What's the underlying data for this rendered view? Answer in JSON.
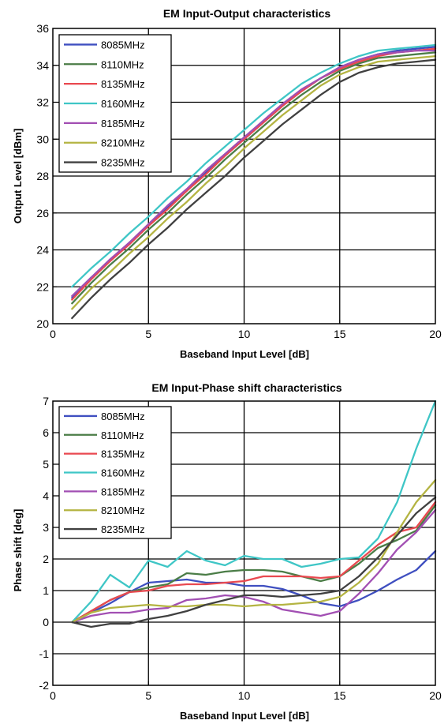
{
  "chart_data": [
    {
      "type": "line",
      "title": "EM Input-Output characteristics",
      "xlabel": "Baseband Input Level [dB]",
      "ylabel": "Output Level [dBm]",
      "xlim": [
        0,
        20
      ],
      "ylim": [
        20,
        36
      ],
      "xticks": [
        0,
        5,
        10,
        15,
        20
      ],
      "yticks": [
        20,
        22,
        24,
        26,
        28,
        30,
        32,
        34,
        36
      ],
      "grid": true,
      "legend_position": "top-left",
      "x": [
        1,
        2,
        3,
        4,
        5,
        6,
        7,
        8,
        9,
        10,
        11,
        12,
        13,
        14,
        15,
        16,
        17,
        18,
        19,
        20
      ],
      "series": [
        {
          "name": "8085MHz",
          "color": "#3f4fc0",
          "values": [
            21.4,
            22.5,
            23.4,
            24.4,
            25.3,
            26.3,
            27.2,
            28.2,
            29.1,
            30.0,
            30.9,
            31.8,
            32.6,
            33.3,
            33.9,
            34.3,
            34.6,
            34.8,
            34.9,
            35.0
          ]
        },
        {
          "name": "8110MHz",
          "color": "#4b7d47",
          "values": [
            21.1,
            22.2,
            23.2,
            24.1,
            25.1,
            26.0,
            27.0,
            27.9,
            28.9,
            29.8,
            30.7,
            31.6,
            32.4,
            33.1,
            33.7,
            34.1,
            34.4,
            34.5,
            34.6,
            34.7
          ]
        },
        {
          "name": "8135MHz",
          "color": "#e94950",
          "values": [
            21.3,
            22.4,
            23.4,
            24.3,
            25.3,
            26.2,
            27.2,
            28.1,
            29.1,
            30.0,
            30.9,
            31.8,
            32.6,
            33.3,
            33.8,
            34.2,
            34.5,
            34.7,
            34.8,
            34.9
          ]
        },
        {
          "name": "8160MHz",
          "color": "#3fc6c6",
          "values": [
            22.0,
            23.0,
            23.9,
            24.9,
            25.8,
            26.8,
            27.7,
            28.7,
            29.6,
            30.5,
            31.4,
            32.2,
            33.0,
            33.6,
            34.1,
            34.5,
            34.8,
            34.9,
            35.0,
            35.1
          ]
        },
        {
          "name": "8185MHz",
          "color": "#a24fb3",
          "values": [
            21.5,
            22.5,
            23.5,
            24.4,
            25.4,
            26.4,
            27.3,
            28.3,
            29.2,
            30.1,
            31.0,
            31.9,
            32.7,
            33.3,
            33.9,
            34.3,
            34.6,
            34.7,
            34.8,
            34.8
          ]
        },
        {
          "name": "8210MHz",
          "color": "#b4b442",
          "values": [
            20.8,
            21.9,
            22.8,
            23.8,
            24.7,
            25.7,
            26.6,
            27.6,
            28.5,
            29.5,
            30.4,
            31.3,
            32.1,
            32.9,
            33.5,
            33.9,
            34.2,
            34.3,
            34.4,
            34.5
          ]
        },
        {
          "name": "8235MHz",
          "color": "#404040",
          "values": [
            20.3,
            21.4,
            22.4,
            23.3,
            24.3,
            25.2,
            26.2,
            27.1,
            28.0,
            29.0,
            29.9,
            30.8,
            31.6,
            32.4,
            33.1,
            33.6,
            33.9,
            34.1,
            34.2,
            34.3
          ]
        }
      ]
    },
    {
      "type": "line",
      "title": "EM Input-Phase shift characteristics",
      "xlabel": "Baseband Input Level [dB]",
      "ylabel": "Phase shift [deg]",
      "xlim": [
        0,
        20
      ],
      "ylim": [
        -2,
        7
      ],
      "xticks": [
        0,
        5,
        10,
        15,
        20
      ],
      "yticks": [
        -2,
        -1,
        0,
        1,
        2,
        3,
        4,
        5,
        6,
        7
      ],
      "grid": true,
      "legend_position": "top-left",
      "x": [
        1,
        2,
        3,
        4,
        5,
        6,
        7,
        8,
        9,
        10,
        11,
        12,
        13,
        14,
        15,
        16,
        17,
        18,
        19,
        20
      ],
      "series": [
        {
          "name": "8085MHz",
          "color": "#3f4fc0",
          "values": [
            0.0,
            0.3,
            0.6,
            0.95,
            1.25,
            1.3,
            1.35,
            1.25,
            1.25,
            1.15,
            1.15,
            1.05,
            0.85,
            0.6,
            0.5,
            0.7,
            1.0,
            1.35,
            1.65,
            2.25
          ]
        },
        {
          "name": "8110MHz",
          "color": "#4b7d47",
          "values": [
            0.0,
            0.35,
            0.7,
            0.95,
            1.1,
            1.2,
            1.55,
            1.5,
            1.6,
            1.65,
            1.65,
            1.6,
            1.45,
            1.3,
            1.45,
            1.85,
            2.35,
            2.6,
            2.9,
            3.7
          ]
        },
        {
          "name": "8135MHz",
          "color": "#e94950",
          "values": [
            0.0,
            0.35,
            0.7,
            0.95,
            1.0,
            1.15,
            1.2,
            1.2,
            1.25,
            1.3,
            1.45,
            1.45,
            1.45,
            1.4,
            1.45,
            1.95,
            2.45,
            2.85,
            3.0,
            3.8
          ]
        },
        {
          "name": "8160MHz",
          "color": "#3fc6c6",
          "values": [
            0.0,
            0.65,
            1.5,
            1.1,
            1.95,
            1.75,
            2.25,
            1.95,
            1.8,
            2.1,
            2.0,
            2.0,
            1.75,
            1.85,
            2.0,
            2.05,
            2.65,
            3.8,
            5.5,
            7.0
          ]
        },
        {
          "name": "8185MHz",
          "color": "#a24fb3",
          "values": [
            0.0,
            0.2,
            0.3,
            0.3,
            0.4,
            0.45,
            0.7,
            0.75,
            0.85,
            0.8,
            0.65,
            0.4,
            0.3,
            0.2,
            0.35,
            0.9,
            1.55,
            2.3,
            2.85,
            3.55
          ]
        },
        {
          "name": "8210MHz",
          "color": "#b4b442",
          "values": [
            0.0,
            0.3,
            0.45,
            0.5,
            0.55,
            0.5,
            0.5,
            0.55,
            0.55,
            0.5,
            0.55,
            0.55,
            0.6,
            0.65,
            0.8,
            1.25,
            1.85,
            2.85,
            3.8,
            4.5
          ]
        },
        {
          "name": "8235MHz",
          "color": "#404040",
          "values": [
            0.0,
            -0.15,
            -0.05,
            -0.05,
            0.1,
            0.2,
            0.35,
            0.55,
            0.7,
            0.85,
            0.85,
            0.8,
            0.85,
            0.9,
            1.0,
            1.45,
            2.05,
            2.75,
            3.45,
            3.95
          ]
        }
      ]
    }
  ]
}
